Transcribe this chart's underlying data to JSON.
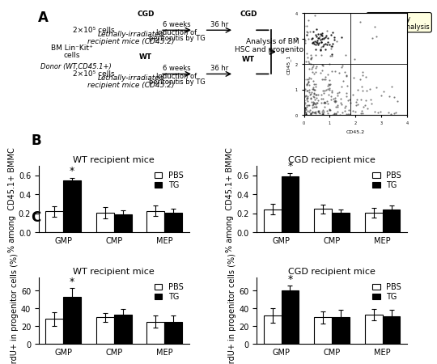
{
  "panel_B": {
    "title_left": "WT recipient mice",
    "title_right": "CGD recipient mice",
    "ylabel": "% among  CD45.1+ BMMC",
    "categories": [
      "GMP",
      "CMP",
      "MEP"
    ],
    "ylim": [
      0,
      0.7
    ],
    "yticks": [
      0.0,
      0.2,
      0.4,
      0.6
    ],
    "wt": {
      "pbs_vals": [
        0.22,
        0.205,
        0.225
      ],
      "pbs_err": [
        0.055,
        0.06,
        0.055
      ],
      "tg_vals": [
        0.545,
        0.185,
        0.205
      ],
      "tg_err": [
        0.03,
        0.045,
        0.04
      ]
    },
    "cgd": {
      "pbs_vals": [
        0.24,
        0.245,
        0.205
      ],
      "pbs_err": [
        0.055,
        0.045,
        0.055
      ],
      "tg_vals": [
        0.585,
        0.205,
        0.24
      ],
      "tg_err": [
        0.04,
        0.035,
        0.045
      ]
    }
  },
  "panel_C": {
    "title_left": "WT recipient mice",
    "title_right": "CGD recipient mice",
    "ylabel": "BrdU+ in progenitor cells (%)",
    "categories": [
      "GMP",
      "CMP",
      "MEP"
    ],
    "ylim": [
      0,
      75
    ],
    "yticks": [
      0,
      20,
      40,
      60
    ],
    "wt": {
      "pbs_vals": [
        28,
        30,
        25
      ],
      "pbs_err": [
        8,
        5,
        7
      ],
      "tg_vals": [
        53,
        33,
        25
      ],
      "tg_err": [
        10,
        6,
        7
      ]
    },
    "cgd": {
      "pbs_vals": [
        32,
        30,
        33
      ],
      "pbs_err": [
        8,
        7,
        6
      ],
      "tg_vals": [
        60,
        30,
        31
      ],
      "tg_err": [
        6,
        8,
        7
      ]
    }
  },
  "bar_width": 0.35,
  "pbs_color": "white",
  "tg_color": "black",
  "edge_color": "black",
  "label_fontsize": 7,
  "title_fontsize": 8,
  "tick_fontsize": 7,
  "legend_fontsize": 7,
  "panel_label_fontsize": 12
}
